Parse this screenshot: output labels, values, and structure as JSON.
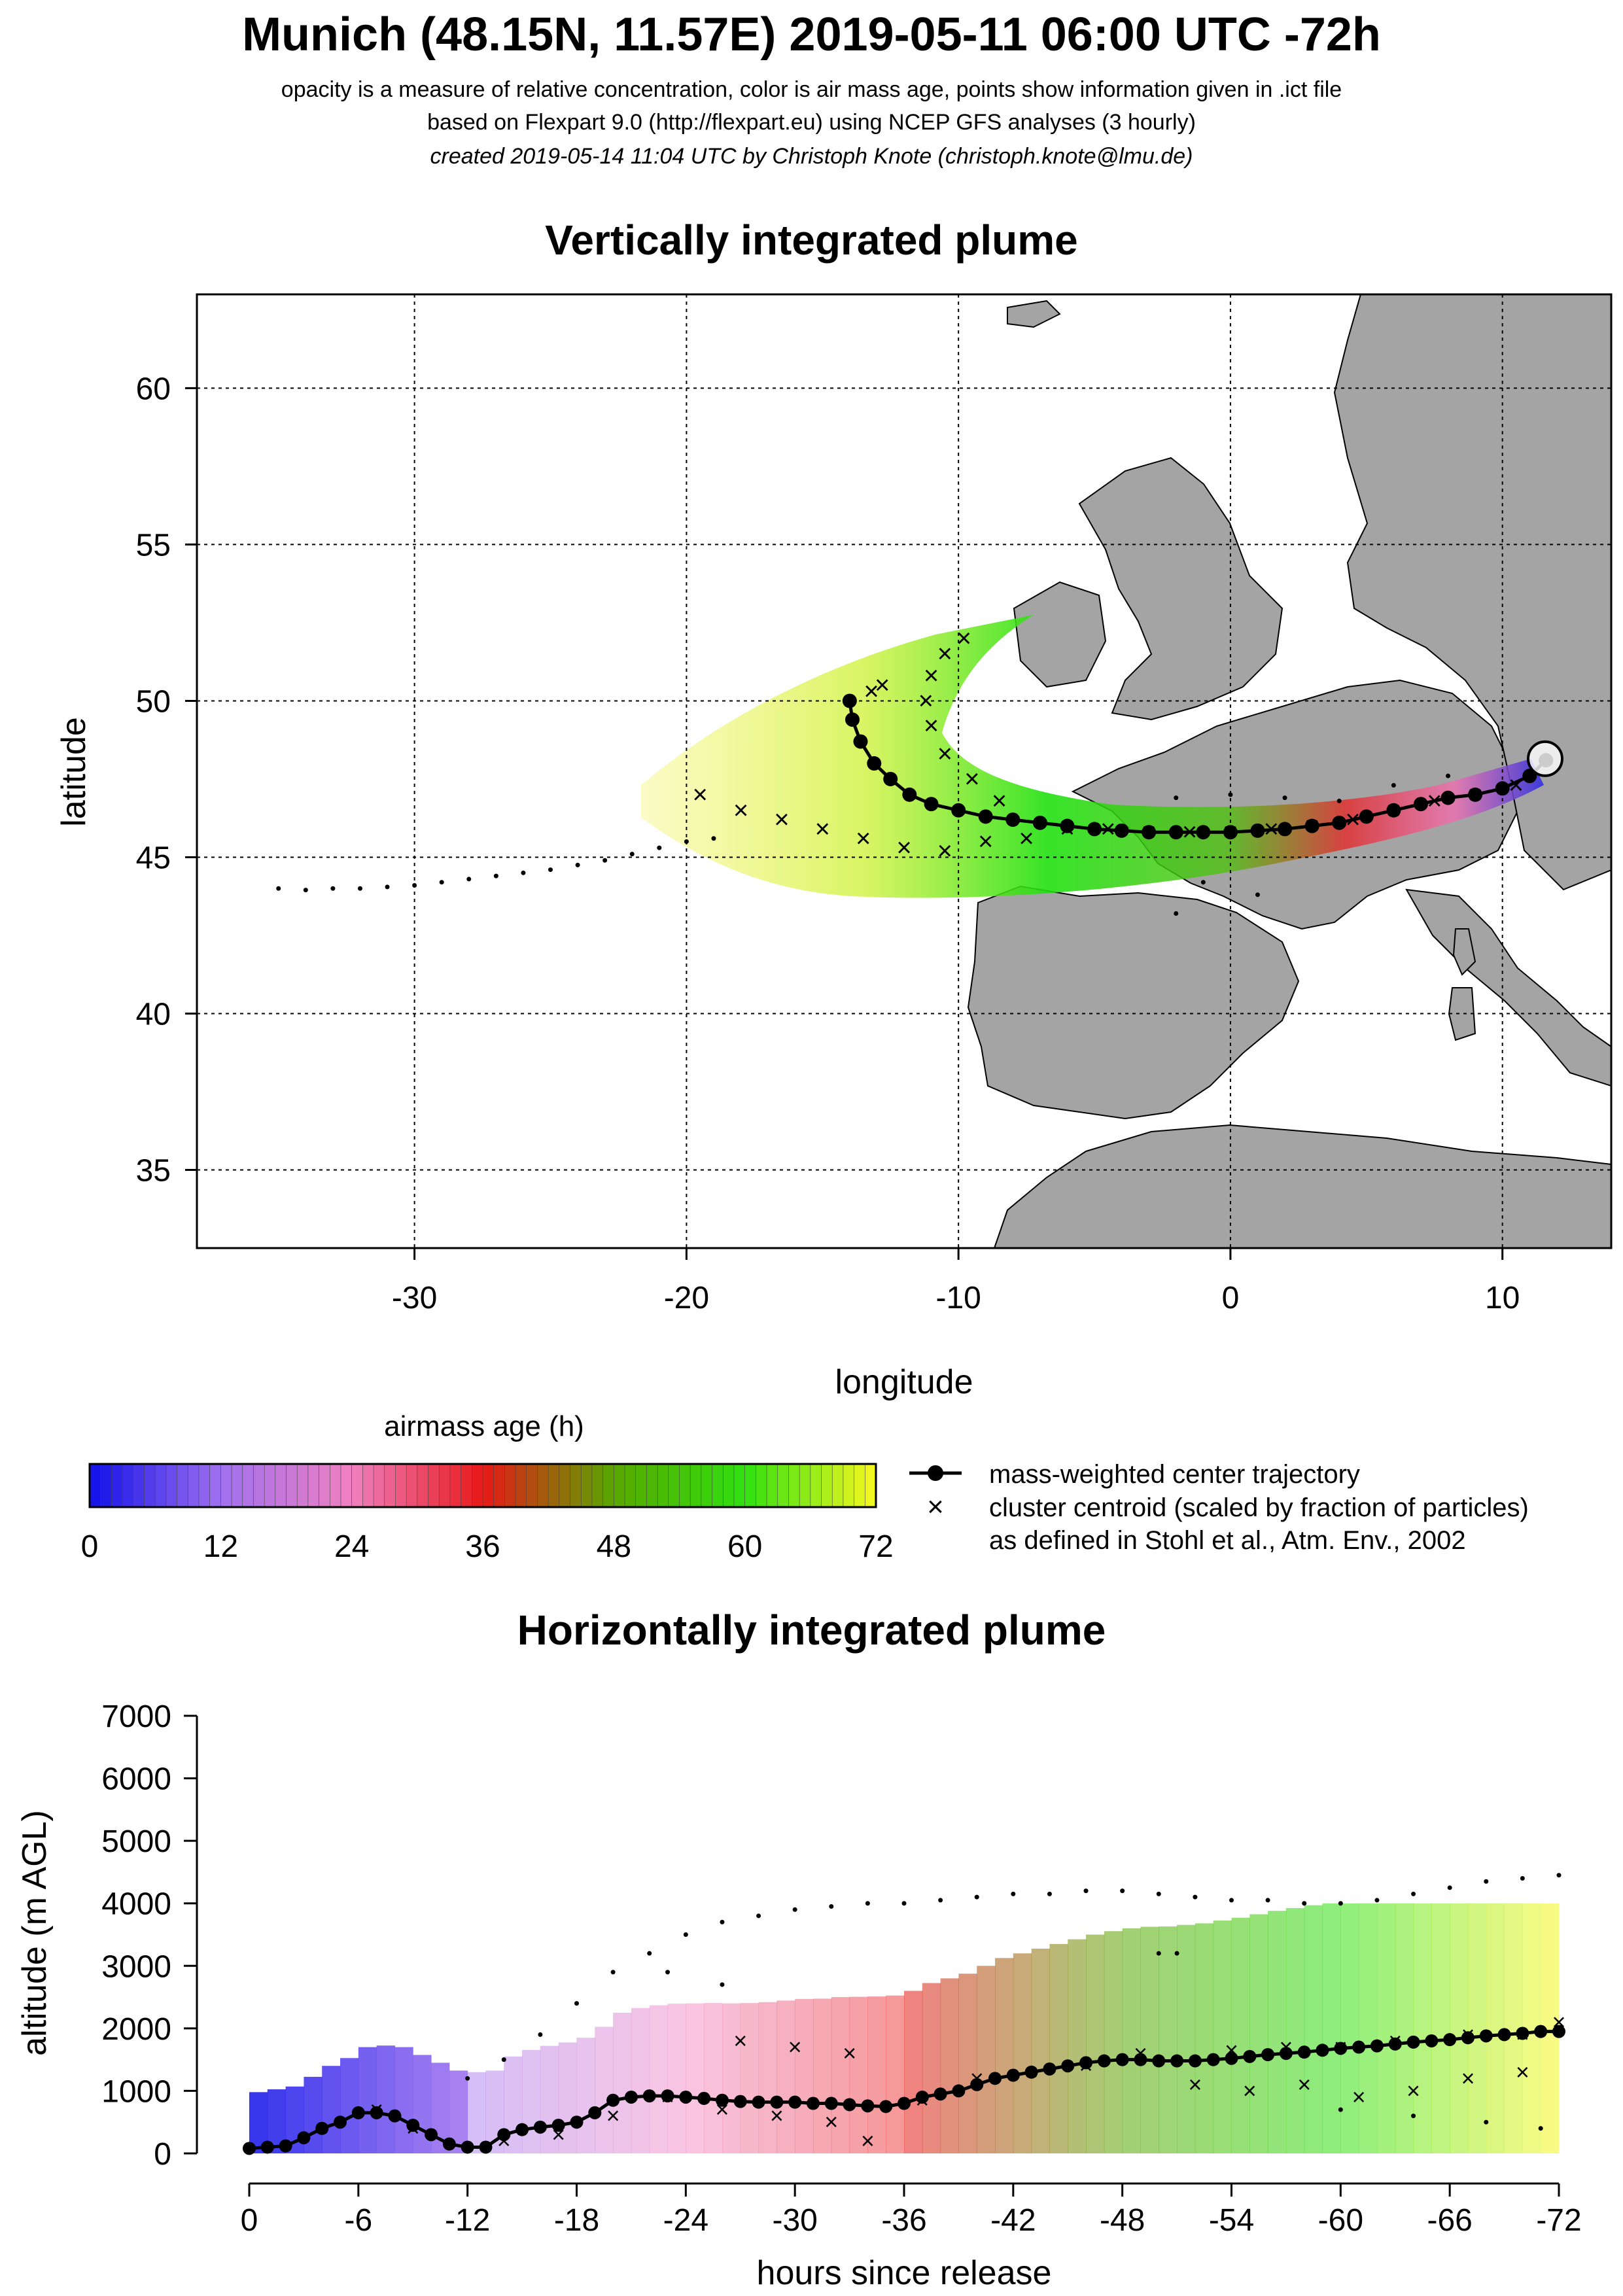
{
  "header": {
    "title": "Munich (48.15N, 11.57E) 2019-05-11 06:00 UTC -72h",
    "subtitle1": "opacity is a measure of relative concentration, color is air mass age, points show information given in .ict file",
    "subtitle2": "based on Flexpart 9.0 (http://flexpart.eu) using NCEP GFS analyses (3 hourly)",
    "subtitle3": "created 2019-05-14 11:04 UTC by Christoph Knote (christoph.knote@lmu.de)"
  },
  "colors": {
    "age_0": "#1010e8",
    "age_12": "#a070f0",
    "age_24": "#f080c0",
    "age_36": "#e81818",
    "age_48": "#58a800",
    "age_60": "#30e010",
    "age_72": "#f8f820",
    "land": "#9a9a9a",
    "axis": "#000000"
  },
  "legend": {
    "colorbar_title": "airmass age (h)",
    "colorbar_ticks": [
      "0",
      "12",
      "24",
      "36",
      "48",
      "60",
      "72"
    ],
    "center_label": "mass-weighted center trajectory",
    "cluster_label": "cluster centroid (scaled by fraction of particles)",
    "cluster_note": "as defined in Stohl et al., Atm. Env., 2002"
  },
  "chart_data": [
    {
      "type": "scatter",
      "title": "Vertically integrated plume",
      "xlabel": "longitude",
      "ylabel": "latitude",
      "xlim": [
        -38,
        14
      ],
      "ylim": [
        32.5,
        63
      ],
      "xticks": [
        "-30",
        "-20",
        "-10",
        "0",
        "10"
      ],
      "yticks": [
        "35",
        "40",
        "45",
        "50",
        "55",
        "60"
      ],
      "grid": true,
      "release_point": {
        "lon": 11.57,
        "lat": 48.15
      },
      "series": [
        {
          "name": "mass-weighted center trajectory",
          "marker": "filled-circle",
          "points": [
            [
              11.6,
              48.1
            ],
            [
              11.0,
              47.6
            ],
            [
              10.0,
              47.2
            ],
            [
              9.0,
              47.0
            ],
            [
              8.0,
              46.9
            ],
            [
              7.0,
              46.7
            ],
            [
              6.0,
              46.5
            ],
            [
              5.0,
              46.3
            ],
            [
              4.0,
              46.1
            ],
            [
              3.0,
              46.0
            ],
            [
              2.0,
              45.9
            ],
            [
              1.0,
              45.85
            ],
            [
              0.0,
              45.8
            ],
            [
              -1.0,
              45.8
            ],
            [
              -2.0,
              45.8
            ],
            [
              -3.0,
              45.8
            ],
            [
              -4.0,
              45.85
            ],
            [
              -5.0,
              45.9
            ],
            [
              -6.0,
              46.0
            ],
            [
              -7.0,
              46.1
            ],
            [
              -8.0,
              46.2
            ],
            [
              -9.0,
              46.3
            ],
            [
              -10.0,
              46.5
            ],
            [
              -11.0,
              46.7
            ],
            [
              -11.8,
              47.0
            ],
            [
              -12.5,
              47.5
            ],
            [
              -13.1,
              48.0
            ],
            [
              -13.6,
              48.7
            ],
            [
              -13.9,
              49.4
            ],
            [
              -14.0,
              50.0
            ]
          ]
        },
        {
          "name": "cluster centroid (scaled by fraction of particles)",
          "marker": "x",
          "points": [
            [
              10.5,
              47.3
            ],
            [
              9.0,
              47.0
            ],
            [
              7.5,
              46.8
            ],
            [
              6.0,
              46.5
            ],
            [
              4.5,
              46.2
            ],
            [
              3.0,
              46.0
            ],
            [
              1.5,
              45.9
            ],
            [
              0.0,
              45.8
            ],
            [
              -1.5,
              45.8
            ],
            [
              -3.0,
              45.8
            ],
            [
              -4.5,
              45.9
            ],
            [
              -6.0,
              45.9
            ],
            [
              -7.5,
              45.6
            ],
            [
              -9.0,
              45.5
            ],
            [
              -10.5,
              45.2
            ],
            [
              -12.0,
              45.3
            ],
            [
              -13.5,
              45.6
            ],
            [
              -15.0,
              45.9
            ],
            [
              -16.5,
              46.2
            ],
            [
              -18.0,
              46.5
            ],
            [
              -19.5,
              47.0
            ],
            [
              -8.5,
              46.8
            ],
            [
              -9.5,
              47.5
            ],
            [
              -10.5,
              48.3
            ],
            [
              -11.0,
              49.2
            ],
            [
              -11.2,
              50.0
            ],
            [
              -11.0,
              50.8
            ],
            [
              -10.5,
              51.5
            ],
            [
              -9.8,
              52.0
            ],
            [
              -12.8,
              50.5
            ],
            [
              -13.2,
              50.3
            ]
          ]
        },
        {
          "name": "",
          "marker": "dot",
          "points": [
            [
              -35.0,
              44.0
            ],
            [
              -34.0,
              43.95
            ],
            [
              -33.0,
              44.0
            ],
            [
              -32.0,
              44.0
            ],
            [
              -31.0,
              44.05
            ],
            [
              -30.0,
              44.1
            ],
            [
              -29.0,
              44.2
            ],
            [
              -28.0,
              44.3
            ],
            [
              -27.0,
              44.4
            ],
            [
              -26.0,
              44.5
            ],
            [
              -25.0,
              44.6
            ],
            [
              -24.0,
              44.75
            ],
            [
              -23.0,
              44.9
            ],
            [
              -22.0,
              45.1
            ],
            [
              -21.0,
              45.3
            ],
            [
              -20.0,
              45.5
            ],
            [
              -19.0,
              45.6
            ],
            [
              -2.0,
              46.9
            ],
            [
              0.0,
              47.0
            ],
            [
              2.0,
              46.9
            ],
            [
              4.0,
              46.8
            ],
            [
              6.0,
              47.3
            ],
            [
              8.0,
              47.6
            ],
            [
              -1.0,
              44.2
            ],
            [
              1.0,
              43.8
            ],
            [
              -2.0,
              43.2
            ]
          ]
        }
      ]
    },
    {
      "type": "scatter",
      "title": "Horizontally integrated plume",
      "xlabel": "hours since release",
      "ylabel": "altitude (m AGL)",
      "xlim": [
        0,
        -72
      ],
      "ylim": [
        0,
        7000
      ],
      "xticks": [
        "0",
        "-6",
        "-12",
        "-18",
        "-24",
        "-30",
        "-36",
        "-42",
        "-48",
        "-54",
        "-60",
        "-66",
        "-72"
      ],
      "yticks": [
        "0",
        "1000",
        "2000",
        "3000",
        "4000",
        "5000",
        "6000",
        "7000"
      ],
      "grid": false,
      "series": [
        {
          "name": "mass-weighted center trajectory",
          "marker": "filled-circle",
          "points": [
            [
              0,
              80
            ],
            [
              -1,
              100
            ],
            [
              -2,
              120
            ],
            [
              -3,
              250
            ],
            [
              -4,
              400
            ],
            [
              -5,
              500
            ],
            [
              -6,
              650
            ],
            [
              -7,
              650
            ],
            [
              -8,
              600
            ],
            [
              -9,
              450
            ],
            [
              -10,
              300
            ],
            [
              -11,
              150
            ],
            [
              -12,
              100
            ],
            [
              -13,
              100
            ],
            [
              -14,
              300
            ],
            [
              -15,
              380
            ],
            [
              -16,
              420
            ],
            [
              -17,
              450
            ],
            [
              -18,
              500
            ],
            [
              -19,
              650
            ],
            [
              -20,
              850
            ],
            [
              -21,
              900
            ],
            [
              -22,
              920
            ],
            [
              -23,
              920
            ],
            [
              -24,
              900
            ],
            [
              -25,
              880
            ],
            [
              -26,
              850
            ],
            [
              -27,
              830
            ],
            [
              -28,
              820
            ],
            [
              -29,
              820
            ],
            [
              -30,
              820
            ],
            [
              -31,
              800
            ],
            [
              -32,
              800
            ],
            [
              -33,
              780
            ],
            [
              -34,
              760
            ],
            [
              -35,
              750
            ],
            [
              -36,
              800
            ],
            [
              -37,
              900
            ],
            [
              -38,
              950
            ],
            [
              -39,
              1000
            ],
            [
              -40,
              1100
            ],
            [
              -41,
              1200
            ],
            [
              -42,
              1250
            ],
            [
              -43,
              1300
            ],
            [
              -44,
              1350
            ],
            [
              -45,
              1400
            ],
            [
              -46,
              1450
            ],
            [
              -47,
              1480
            ],
            [
              -48,
              1500
            ],
            [
              -49,
              1500
            ],
            [
              -50,
              1480
            ],
            [
              -51,
              1480
            ],
            [
              -52,
              1480
            ],
            [
              -53,
              1500
            ],
            [
              -54,
              1520
            ],
            [
              -55,
              1550
            ],
            [
              -56,
              1580
            ],
            [
              -57,
              1600
            ],
            [
              -58,
              1620
            ],
            [
              -59,
              1650
            ],
            [
              -60,
              1680
            ],
            [
              -61,
              1700
            ],
            [
              -62,
              1720
            ],
            [
              -63,
              1750
            ],
            [
              -64,
              1780
            ],
            [
              -65,
              1800
            ],
            [
              -66,
              1820
            ],
            [
              -67,
              1850
            ],
            [
              -68,
              1880
            ],
            [
              -69,
              1900
            ],
            [
              -70,
              1920
            ],
            [
              -71,
              1950
            ],
            [
              -72,
              1950
            ]
          ]
        },
        {
          "name": "cluster centroid (scaled by fraction of particles)",
          "marker": "x",
          "points": [
            [
              -4,
              400
            ],
            [
              -7,
              700
            ],
            [
              -9,
              400
            ],
            [
              -14,
              200
            ],
            [
              -17,
              300
            ],
            [
              -20,
              600
            ],
            [
              -23,
              900
            ],
            [
              -26,
              700
            ],
            [
              -29,
              600
            ],
            [
              -32,
              500
            ],
            [
              -34,
              200
            ],
            [
              -37,
              850
            ],
            [
              -40,
              1200
            ],
            [
              -43,
              1300
            ],
            [
              -46,
              1400
            ],
            [
              -49,
              1600
            ],
            [
              -52,
              1100
            ],
            [
              -55,
              1000
            ],
            [
              -58,
              1100
            ],
            [
              -61,
              900
            ],
            [
              -64,
              1000
            ],
            [
              -67,
              1200
            ],
            [
              -70,
              1300
            ],
            [
              -72,
              2100
            ],
            [
              -70,
              1900
            ],
            [
              -67,
              1900
            ],
            [
              -63,
              1800
            ],
            [
              -60,
              1700
            ],
            [
              -57,
              1700
            ],
            [
              -54,
              1650
            ],
            [
              -27,
              1800
            ],
            [
              -30,
              1700
            ],
            [
              -33,
              1600
            ]
          ]
        },
        {
          "name": "",
          "marker": "dot",
          "points": [
            [
              -12,
              1200
            ],
            [
              -14,
              1500
            ],
            [
              -16,
              1900
            ],
            [
              -18,
              2400
            ],
            [
              -20,
              2900
            ],
            [
              -22,
              3200
            ],
            [
              -24,
              3500
            ],
            [
              -26,
              3700
            ],
            [
              -28,
              3800
            ],
            [
              -30,
              3900
            ],
            [
              -32,
              3950
            ],
            [
              -34,
              4000
            ],
            [
              -36,
              4000
            ],
            [
              -38,
              4050
            ],
            [
              -40,
              4100
            ],
            [
              -42,
              4150
            ],
            [
              -44,
              4150
            ],
            [
              -46,
              4200
            ],
            [
              -48,
              4200
            ],
            [
              -50,
              4150
            ],
            [
              -52,
              4100
            ],
            [
              -54,
              4050
            ],
            [
              -56,
              4050
            ],
            [
              -58,
              4000
            ],
            [
              -60,
              4000
            ],
            [
              -62,
              4050
            ],
            [
              -64,
              4150
            ],
            [
              -66,
              4250
            ],
            [
              -68,
              4350
            ],
            [
              -70,
              4400
            ],
            [
              -72,
              4450
            ],
            [
              -23,
              2900
            ],
            [
              -26,
              2700
            ],
            [
              -50,
              3200
            ],
            [
              -51,
              3200
            ],
            [
              -60,
              700
            ],
            [
              -64,
              600
            ],
            [
              -68,
              500
            ],
            [
              -71,
              400
            ]
          ]
        }
      ]
    }
  ]
}
